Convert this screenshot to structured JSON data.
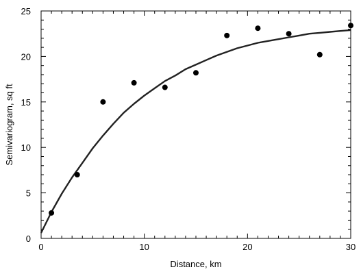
{
  "chart_data": {
    "type": "scatter",
    "xlabel": "Distance, km",
    "ylabel": "Semivariogram, sq ft",
    "xlim": [
      0,
      30
    ],
    "ylim": [
      0,
      25
    ],
    "x_major_ticks": [
      0,
      10,
      20,
      30
    ],
    "y_major_ticks": [
      0,
      5,
      10,
      15,
      20,
      25
    ],
    "grid": false,
    "legend": "none",
    "series": [
      {
        "type": "scatter",
        "x": [
          1,
          3.5,
          6,
          9,
          12,
          15,
          18,
          21,
          24,
          27,
          30
        ],
        "y": [
          2.8,
          7.0,
          15.0,
          17.1,
          16.6,
          18.2,
          22.3,
          23.1,
          22.5,
          20.2,
          23.4
        ]
      },
      {
        "type": "line",
        "x": [
          0,
          1,
          2,
          3,
          4,
          5,
          6,
          7,
          8,
          9,
          10,
          11,
          12,
          13,
          14,
          15,
          16,
          17,
          18,
          19,
          20,
          21,
          22,
          23,
          24,
          25,
          26,
          27,
          28,
          29,
          30
        ],
        "y": [
          0.6,
          2.9,
          4.9,
          6.7,
          8.3,
          9.9,
          11.3,
          12.6,
          13.8,
          14.8,
          15.7,
          16.5,
          17.3,
          17.9,
          18.6,
          19.1,
          19.6,
          20.1,
          20.5,
          20.9,
          21.2,
          21.5,
          21.7,
          21.9,
          22.1,
          22.3,
          22.5,
          22.6,
          22.7,
          22.8,
          22.9
        ]
      }
    ]
  }
}
